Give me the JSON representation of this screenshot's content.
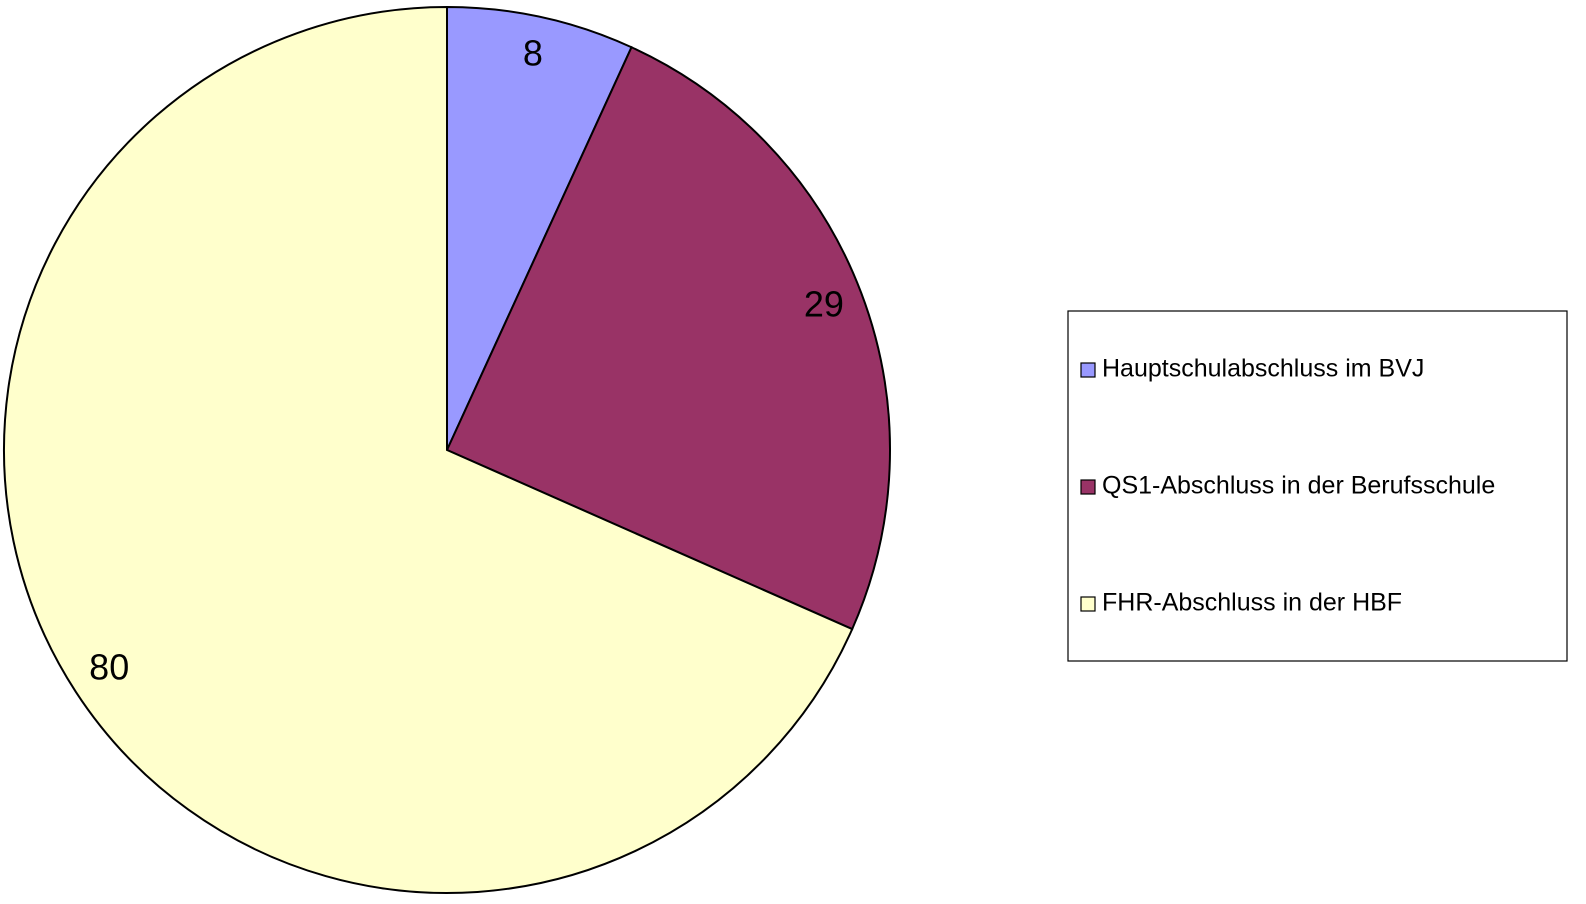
{
  "chart_data": {
    "type": "pie",
    "categories": [
      "Hauptschulabschluss im BVJ",
      "QS1-Abschluss in der Berufsschule",
      "FHR-Abschluss in der HBF"
    ],
    "values": [
      8,
      29,
      80
    ],
    "colors": [
      "#9999ff",
      "#993366",
      "#ffffcc"
    ],
    "legend": "right"
  }
}
